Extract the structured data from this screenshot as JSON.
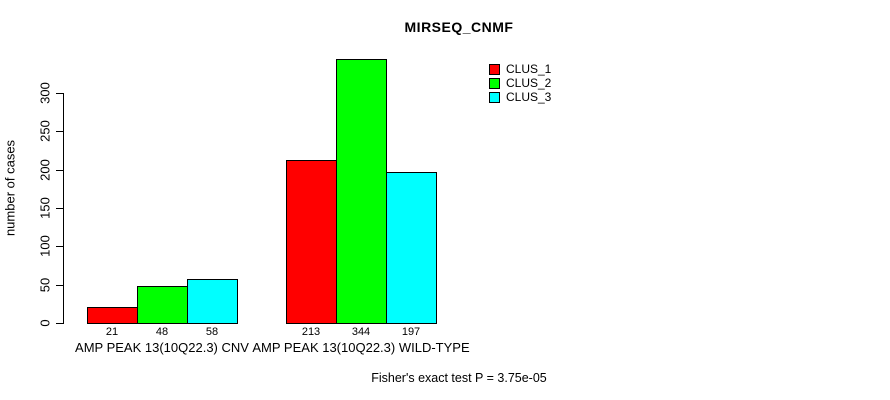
{
  "title": "MIRSEQ_CNMF",
  "y_axis": {
    "label": "number of cases"
  },
  "footer": "Fisher's exact test P = 3.75e-05",
  "chart_data": {
    "type": "bar",
    "title": "MIRSEQ_CNMF",
    "xlabel": "",
    "ylabel": "number of cases",
    "categories": [
      "AMP PEAK 13(10Q22.3) CNV",
      "AMP PEAK 13(10Q22.3) WILD-TYPE"
    ],
    "series": [
      {
        "name": "CLUS_1",
        "color": "#ff0000",
        "values": [
          21,
          213
        ]
      },
      {
        "name": "CLUS_2",
        "color": "#00ff00",
        "values": [
          48,
          344
        ]
      },
      {
        "name": "CLUS_3",
        "color": "#00ffff",
        "values": [
          58,
          197
        ]
      }
    ],
    "yticks": [
      0,
      50,
      100,
      150,
      200,
      250,
      300
    ],
    "ylim": [
      0,
      350
    ],
    "grid": false,
    "bar_value_labels": true,
    "legend_position": "top-right",
    "legend_entries": [
      "CLUS_1",
      "CLUS_2",
      "CLUS_3"
    ],
    "annotation": "Fisher's exact test P = 3.75e-05"
  }
}
